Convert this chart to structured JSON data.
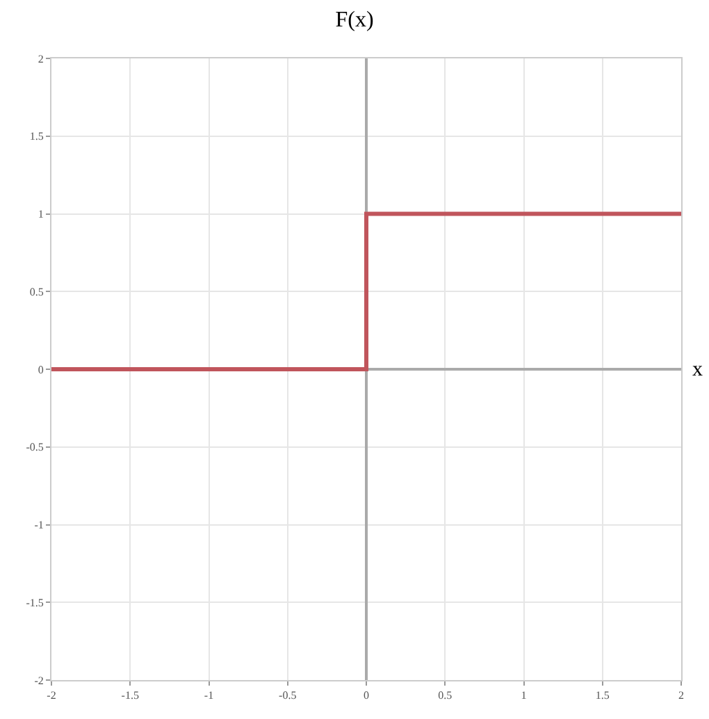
{
  "chart_data": {
    "type": "step",
    "title": "F(x)",
    "xlabel": "x",
    "x": [
      -2,
      0,
      2
    ],
    "series": [
      {
        "color": "#c0555c",
        "values": [
          0,
          1,
          1
        ]
      }
    ],
    "xlim": [
      -2,
      2
    ],
    "ylim": [
      -2,
      2
    ],
    "xticks": [
      -2,
      -1.5,
      -1,
      -0.5,
      0,
      0.5,
      1,
      1.5,
      2
    ],
    "yticks": [
      -2,
      -1.5,
      -1,
      -0.5,
      0,
      0.5,
      1,
      1.5,
      2
    ],
    "grid": true,
    "marker": "none",
    "line_style": "solid"
  }
}
